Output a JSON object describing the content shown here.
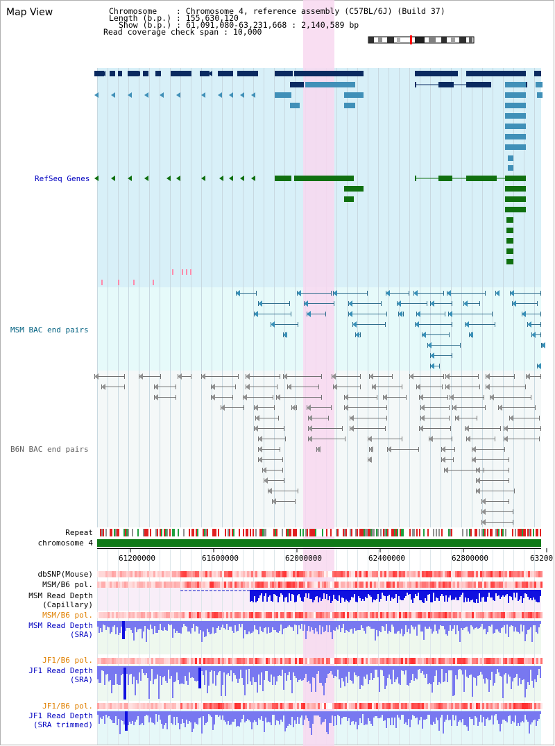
{
  "page": {
    "title": "Map View"
  },
  "header": {
    "chromosome_label": "Chromosome    : ",
    "chromosome_value": "Chromosome 4, reference assembly (C57BL/6J) (Build 37)",
    "length_label": "Length (b.p.) : ",
    "length_value": "155,630,120",
    "show_label": "Show (b.p.) : ",
    "show_value": "61,091,080-63,231,668 : 2,140,589 bp",
    "coverage_label": "Read coverage check span : ",
    "coverage_value": "10,000"
  },
  "tracks": {
    "refseq": "RefSeq Genes",
    "msm_bac": "MSM BAC end pairs",
    "b6n_bac": "B6N BAC end pairs",
    "repeat": "Repeat",
    "chromosome": "chromosome 4",
    "dbsnp": "dbSNP(Mouse)",
    "msm_b6_pol_1": "MSM/B6 pol.",
    "msm_depth_cap_1": "MSM Read Depth",
    "msm_depth_cap_2": "(Capillary)",
    "msm_b6_pol_2": "MSM/B6 pol.",
    "msm_depth_sra_1": "MSM Read Depth",
    "msm_depth_sra_2": "(SRA)",
    "jf1_b6_pol_1": "JF1/B6 pol.",
    "jf1_depth_sra_1": "JF1 Read Depth",
    "jf1_depth_sra_2": "(SRA)",
    "jf1_b6_pol_2": "JF1/B6 pol.",
    "jf1_depth_trim_1": "JF1 Read Depth",
    "jf1_depth_trim_2": "(SRA trimmed)"
  },
  "axis": {
    "ticks": [
      "61200000",
      "61600000",
      "62000000",
      "62400000",
      "62800000",
      "63200"
    ]
  },
  "colors": {
    "refseq_bg": "#d8f0f8",
    "bac_bg": "#e6fafa",
    "b6n_bg": "#f4f8f8",
    "highlight": "#f8d8f0",
    "gene_dark": "#0a2a60",
    "gene_mid": "#4090b8",
    "gene_green": "#107010",
    "msm_pair": "#2a6a8a",
    "b6n_pair": "#707070",
    "depth_blue": "#1010e0",
    "depth_light": "#7878f0",
    "label_blue": "#0000c0",
    "label_orange": "#e08000",
    "label_teal": "#006080",
    "label_gray": "#606060"
  }
}
